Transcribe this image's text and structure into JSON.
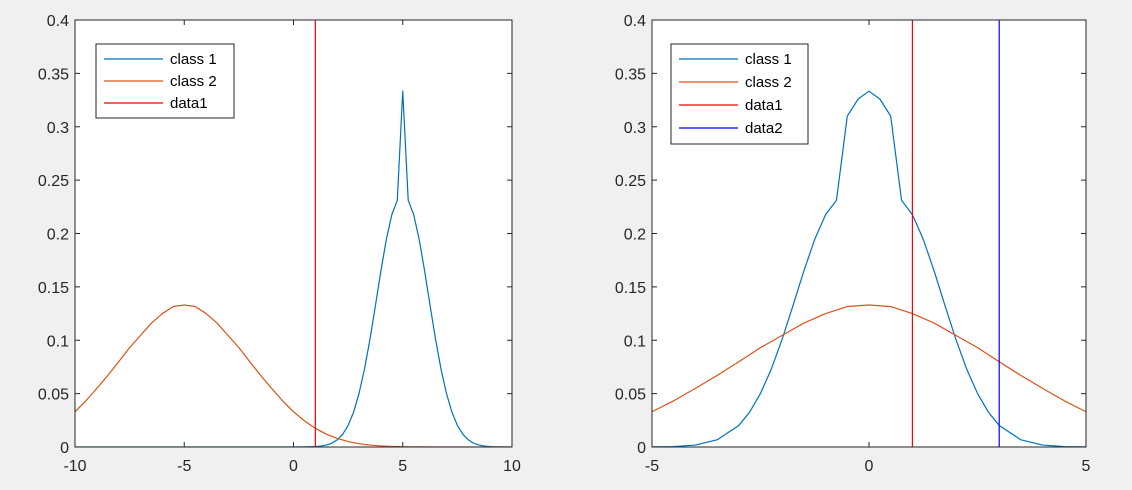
{
  "figure": {
    "background": "#f0f0f0"
  },
  "chart_data": [
    {
      "type": "line",
      "title": "",
      "xlabel": "",
      "ylabel": "",
      "xlim": [
        -10,
        10
      ],
      "ylim": [
        0,
        0.4
      ],
      "xticks": [
        -10,
        -5,
        0,
        5,
        10
      ],
      "xtick_labels": [
        "-10",
        "-5",
        "0",
        "5",
        "10"
      ],
      "yticks": [
        0,
        0.05,
        0.1,
        0.15,
        0.2,
        0.25,
        0.3,
        0.35,
        0.4
      ],
      "ytick_labels": [
        "0",
        "0.05",
        "0.1",
        "0.15",
        "0.2",
        "0.25",
        "0.3",
        "0.35",
        "0.4"
      ],
      "grid": false,
      "legend_position": "top-left",
      "series": [
        {
          "name": "class 1",
          "color": "#0072bd",
          "x": [
            -10,
            -9.5,
            -9,
            -8.5,
            -8,
            -7.5,
            -7,
            -6.5,
            -6,
            -5.5,
            -5,
            -4.5,
            -4,
            -3.5,
            -3,
            -2.5,
            -2,
            -1.5,
            -1,
            -0.5,
            0,
            0.5,
            1,
            1.25,
            1.5,
            1.75,
            2,
            2.25,
            2.5,
            2.75,
            3,
            3.25,
            3.5,
            3.75,
            4,
            4.25,
            4.5,
            4.75,
            5,
            5.25,
            5.5,
            5.75,
            6,
            6.25,
            6.5,
            6.75,
            7,
            7.25,
            7.5,
            7.75,
            8,
            8.25,
            8.5,
            8.75,
            9,
            9.25,
            9.5,
            9.75,
            10
          ],
          "y": [
            0,
            0,
            0,
            0,
            0,
            0,
            0,
            0,
            0,
            0,
            0,
            0,
            0,
            0,
            0,
            0,
            0,
            0,
            0,
            0,
            0,
            0.0001,
            0.0004,
            0.0009,
            0.0018,
            0.0035,
            0.0067,
            0.0119,
            0.0202,
            0.0327,
            0.0502,
            0.0731,
            0.1011,
            0.1326,
            0.165,
            0.1946,
            0.2177,
            0.2311,
            0.3333,
            0.2311,
            0.2177,
            0.1946,
            0.165,
            0.1326,
            0.1011,
            0.0731,
            0.0502,
            0.0327,
            0.0202,
            0.0119,
            0.0067,
            0.0035,
            0.0018,
            0.0009,
            0.0004,
            0.0002,
            0.0001,
            0,
            0
          ]
        },
        {
          "name": "class 2",
          "color": "#d95319",
          "x": [
            -10,
            -9.5,
            -9,
            -8.5,
            -8,
            -7.5,
            -7,
            -6.5,
            -6,
            -5.5,
            -5,
            -4.5,
            -4,
            -3.5,
            -3,
            -2.5,
            -2,
            -1.5,
            -1,
            -0.5,
            0,
            0.5,
            1,
            1.5,
            2,
            2.5,
            3,
            3.5,
            4,
            4.5,
            5,
            5.5,
            6,
            6.5,
            7,
            7.5,
            8,
            8.5,
            9,
            9.5,
            10
          ],
          "y": [
            0.033,
            0.0433,
            0.0549,
            0.067,
            0.0799,
            0.0931,
            0.1046,
            0.1161,
            0.125,
            0.1316,
            0.133,
            0.1316,
            0.125,
            0.1161,
            0.1046,
            0.0931,
            0.0799,
            0.067,
            0.0549,
            0.0433,
            0.033,
            0.0245,
            0.0175,
            0.012,
            0.008,
            0.0051,
            0.0031,
            0.0018,
            0.001,
            0.0005,
            0.0003,
            0.0001,
            0.0001,
            0,
            0,
            0,
            0,
            0,
            0,
            0,
            0
          ]
        },
        {
          "name": "data1",
          "color": "#ff0000",
          "x": [
            1,
            1
          ],
          "y": [
            0,
            0.4
          ]
        }
      ]
    },
    {
      "type": "line",
      "title": "",
      "xlabel": "",
      "ylabel": "",
      "xlim": [
        -5,
        5
      ],
      "ylim": [
        0,
        0.4
      ],
      "xticks": [
        -5,
        0,
        5
      ],
      "xtick_labels": [
        "-5",
        "0",
        "5"
      ],
      "yticks": [
        0,
        0.05,
        0.1,
        0.15,
        0.2,
        0.25,
        0.3,
        0.35,
        0.4
      ],
      "ytick_labels": [
        "0",
        "0.05",
        "0.1",
        "0.15",
        "0.2",
        "0.25",
        "0.3",
        "0.35",
        "0.4"
      ],
      "grid": false,
      "legend_position": "top-left",
      "series": [
        {
          "name": "class 1",
          "color": "#0072bd",
          "x": [
            -5,
            -4.5,
            -4,
            -3.5,
            -3,
            -2.75,
            -2.5,
            -2.25,
            -2,
            -1.75,
            -1.5,
            -1.25,
            -1,
            -0.75,
            -0.5,
            -0.25,
            0,
            0.25,
            0.5,
            0.75,
            1,
            1.25,
            1.5,
            1.75,
            2,
            2.25,
            2.5,
            2.75,
            3,
            3.5,
            4,
            4.5,
            5
          ],
          "y": [
            0.0001,
            0.0004,
            0.0018,
            0.0067,
            0.0202,
            0.0327,
            0.0502,
            0.0731,
            0.1011,
            0.1326,
            0.165,
            0.1946,
            0.2177,
            0.2311,
            0.31,
            0.326,
            0.3333,
            0.326,
            0.31,
            0.2311,
            0.2177,
            0.1946,
            0.165,
            0.1326,
            0.1011,
            0.0731,
            0.0502,
            0.0327,
            0.0202,
            0.0067,
            0.0018,
            0.0004,
            0.0001
          ]
        },
        {
          "name": "class 2",
          "color": "#d95319",
          "x": [
            -5,
            -4.5,
            -4,
            -3.5,
            -3,
            -2.5,
            -2,
            -1.5,
            -1,
            -0.5,
            0,
            0.5,
            1,
            1.5,
            2,
            2.5,
            3,
            3.5,
            4,
            4.5,
            5
          ],
          "y": [
            0.033,
            0.0433,
            0.0549,
            0.067,
            0.0799,
            0.0931,
            0.1046,
            0.1161,
            0.125,
            0.1316,
            0.133,
            0.1316,
            0.125,
            0.1161,
            0.1046,
            0.0931,
            0.0799,
            0.067,
            0.0549,
            0.0433,
            0.033
          ]
        },
        {
          "name": "data1",
          "color": "#ff0000",
          "x": [
            1,
            1
          ],
          "y": [
            0,
            0.4
          ]
        },
        {
          "name": "data2",
          "color": "#0000ff",
          "x": [
            3,
            3
          ],
          "y": [
            0,
            0.4
          ]
        }
      ]
    }
  ]
}
